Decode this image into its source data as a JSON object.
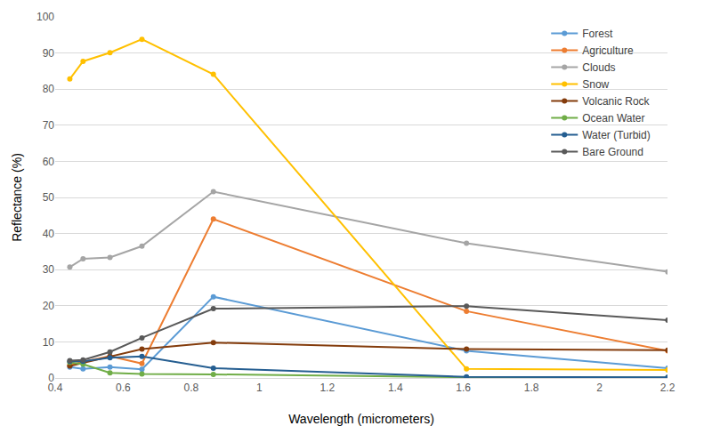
{
  "chart_data": {
    "type": "line",
    "x_label": "Wavelength (micrometers)",
    "y_label": "Reflectance (%)",
    "x": [
      0.443,
      0.482,
      0.561,
      0.655,
      0.865,
      1.609,
      2.201
    ],
    "xlim": [
      0.4,
      2.2
    ],
    "xticks": [
      0.4,
      0.6,
      0.8,
      1,
      1.2,
      1.4,
      1.6,
      1.8,
      2,
      2.2
    ],
    "ylim": [
      0,
      100
    ],
    "yticks": [
      0,
      10,
      20,
      30,
      40,
      50,
      60,
      70,
      80,
      90,
      100
    ],
    "grid": "y",
    "legend": "upper right",
    "marker": "circle",
    "line_style": "solid",
    "series": [
      {
        "name": "Forest",
        "color": "#5b9bd5",
        "values": [
          3.0,
          2.5,
          3.0,
          2.4,
          22.5,
          7.5,
          2.7
        ]
      },
      {
        "name": "Agriculture",
        "color": "#ed7d31",
        "values": [
          3.5,
          4.5,
          6.0,
          4.0,
          44.0,
          18.5,
          7.5
        ]
      },
      {
        "name": "Clouds",
        "color": "#a5a5a5",
        "values": [
          30.7,
          33.0,
          33.4,
          36.5,
          51.6,
          37.3,
          29.4
        ]
      },
      {
        "name": "Snow",
        "color": "#ffc000",
        "values": [
          82.8,
          87.7,
          90.1,
          93.8,
          84.1,
          2.5,
          2.2
        ]
      },
      {
        "name": "Volcanic Rock",
        "color": "#843c0c",
        "values": [
          3.3,
          4.2,
          6.0,
          8.0,
          9.8,
          8.0,
          7.7
        ]
      },
      {
        "name": "Ocean Water",
        "color": "#70ad47",
        "values": [
          4.3,
          3.8,
          1.4,
          1.1,
          1.0,
          0.2,
          0.1
        ]
      },
      {
        "name": "Water (Turbid)",
        "color": "#255e91",
        "values": [
          4.6,
          4.6,
          5.6,
          6.0,
          2.7,
          0.3,
          0.2
        ]
      },
      {
        "name": "Bare Ground",
        "color": "#595959",
        "values": [
          4.8,
          5.0,
          7.2,
          11.1,
          19.2,
          19.9,
          16.0
        ]
      }
    ]
  }
}
